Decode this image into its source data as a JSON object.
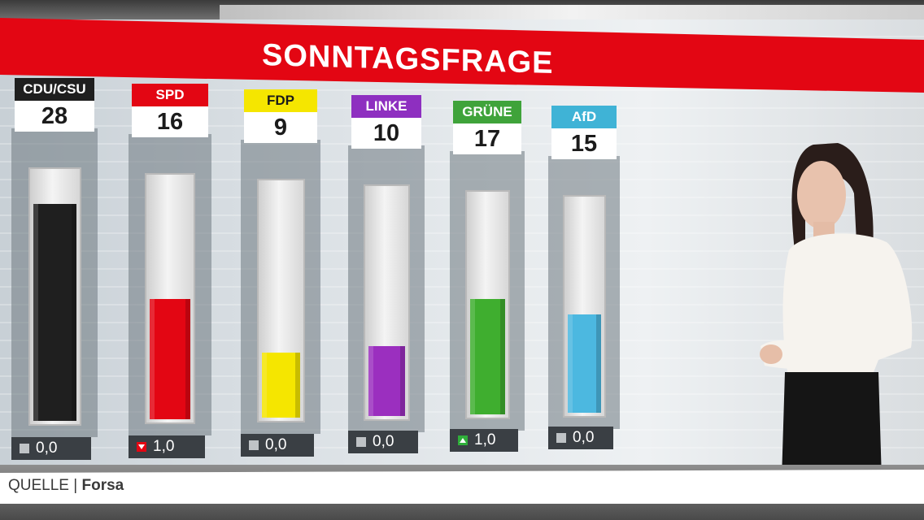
{
  "chart_data": {
    "type": "bar",
    "title": "SONNTAGSFRAGE",
    "categories": [
      "CDU/CSU",
      "SPD",
      "FDP",
      "LINKE",
      "GRÜNE",
      "AfD"
    ],
    "values": [
      28,
      16,
      9,
      10,
      17,
      15
    ],
    "value_labels": [
      "28",
      "16",
      "9",
      "10",
      "17",
      "15"
    ],
    "changes": [
      "0,0",
      "1,0",
      "0,0",
      "0,0",
      "1,0",
      "0,0"
    ],
    "change_directions": [
      "same",
      "down",
      "same",
      "same",
      "up",
      "same"
    ],
    "colors": [
      "#1f1f1f",
      "#e30613",
      "#f5e600",
      "#9b2fbf",
      "#3fae2f",
      "#4cb8e0"
    ],
    "tag_colors": [
      "#1f1f1f",
      "#e30613",
      "#f5e600",
      "#8e2fc0",
      "#3fa33a",
      "#3fb3d6"
    ],
    "tag_text_colors": [
      "#ffffff",
      "#ffffff",
      "#1b1b1b",
      "#ffffff",
      "#ffffff",
      "#ffffff"
    ],
    "ylim": [
      0,
      30
    ],
    "grid": false
  },
  "source": {
    "label": "QUELLE",
    "name": "Forsa"
  },
  "colors": {
    "banner": "#e30613",
    "change_box": "#3a3f44"
  }
}
